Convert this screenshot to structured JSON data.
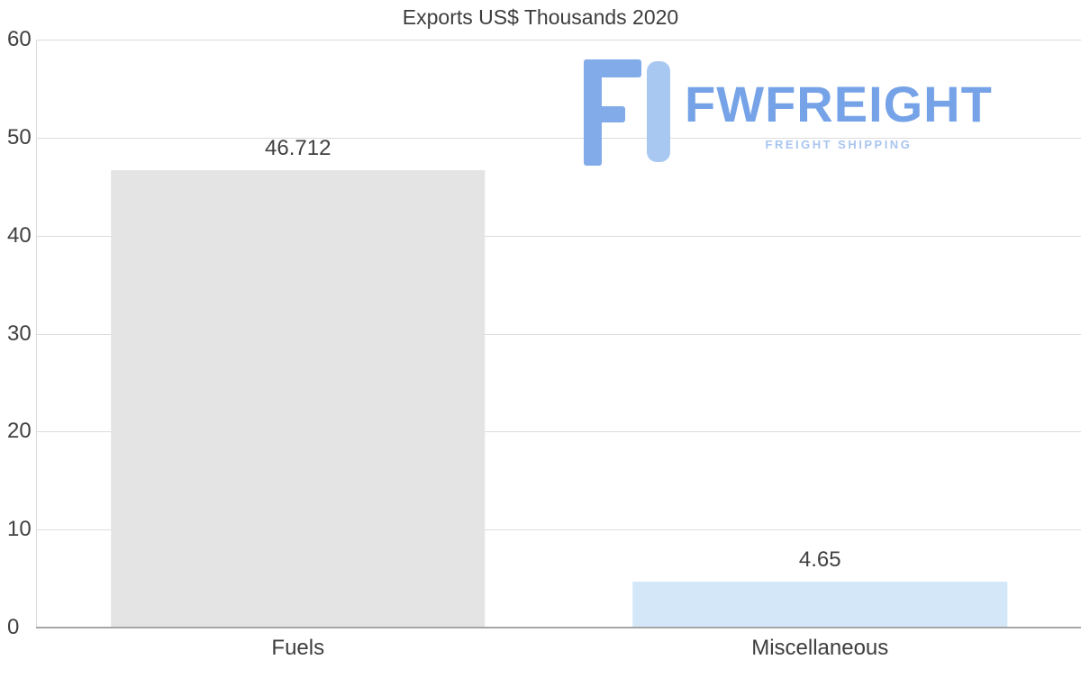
{
  "chart_data": {
    "type": "bar",
    "title": "Exports US$ Thousands 2020",
    "categories": [
      "Fuels",
      "Miscellaneous"
    ],
    "values": [
      46.712,
      4.65
    ],
    "value_labels": [
      "46.712",
      "4.65"
    ],
    "bar_colors": [
      "#e4e4e4",
      "#d3e7f9"
    ],
    "ylim": [
      0,
      60
    ],
    "yticks": [
      0,
      10,
      20,
      30,
      40,
      50,
      60
    ],
    "xlabel": "",
    "ylabel": "",
    "grid": "horizontal",
    "legend": "none"
  },
  "watermark": {
    "name": "FWFREIGHT",
    "tagline": "FREIGHT SHIPPING",
    "colors": {
      "name": "#76a3e7",
      "tagline": "#a9c5ef",
      "icon_dark": "#82abe9",
      "icon_light": "#a8c8f2"
    }
  }
}
